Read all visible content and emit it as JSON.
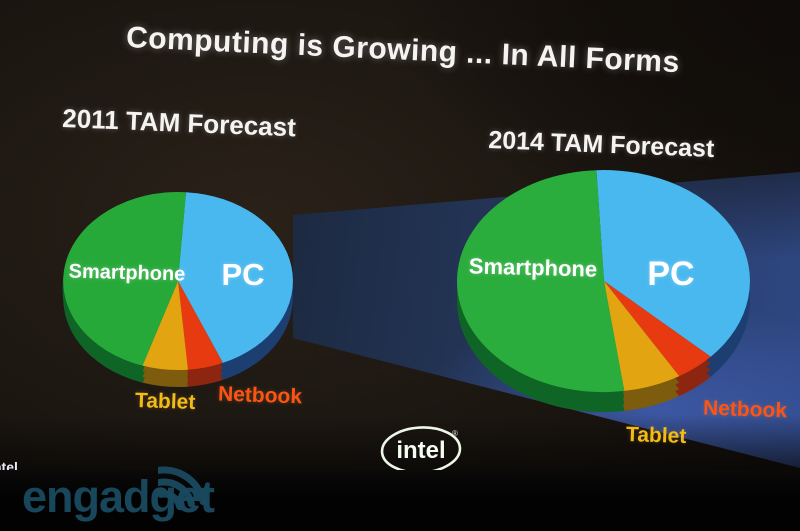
{
  "slide": {
    "title": "Computing is Growing ... In All Forms"
  },
  "chart_data": [
    {
      "type": "pie",
      "title": "2011 TAM Forecast",
      "style": "3d-ellipse",
      "slices": [
        {
          "label": "PC",
          "share_pct_est": 43,
          "start_deg": 4,
          "end_deg": 157,
          "color": "#48b8ef",
          "side_color": "#1d3e70",
          "label_color": "#ffffff"
        },
        {
          "label": "Netbook",
          "share_pct_est": 5,
          "start_deg": 157,
          "end_deg": 175,
          "color": "#e83a10",
          "side_color": "#8c2610",
          "label_color": "#ff5316"
        },
        {
          "label": "Tablet",
          "share_pct_est": 6,
          "start_deg": 175,
          "end_deg": 198,
          "color": "#e2a511",
          "side_color": "#7d5c0e",
          "label_color": "#f2bc16"
        },
        {
          "label": "Smartphone",
          "share_pct_est": 46,
          "start_deg": 198,
          "end_deg": 364,
          "color": "#27a93a",
          "side_color": "#0f6526",
          "label_color": "#ffffff"
        }
      ]
    },
    {
      "type": "pie",
      "title": "2014 TAM Forecast",
      "style": "3d-ellipse",
      "slices": [
        {
          "label": "PC",
          "share_pct_est": 38,
          "start_deg": -3,
          "end_deg": 133,
          "color": "#48b8ef",
          "side_color": "#1d3e70",
          "label_color": "#ffffff"
        },
        {
          "label": "Netbook",
          "share_pct_est": 4,
          "start_deg": 133,
          "end_deg": 149,
          "color": "#e83a10",
          "side_color": "#8c2610",
          "label_color": "#ff5316"
        },
        {
          "label": "Tablet",
          "share_pct_est": 7,
          "start_deg": 149,
          "end_deg": 172,
          "color": "#e2a511",
          "side_color": "#7d5c0e",
          "label_color": "#f2bc16"
        },
        {
          "label": "Smartphone",
          "share_pct_est": 51,
          "start_deg": 172,
          "end_deg": 357,
          "color": "#2aad3c",
          "side_color": "#0f6526",
          "label_color": "#ffffff"
        }
      ]
    }
  ],
  "footer": {
    "intel_logo_text": "intel",
    "registered_mark": "®",
    "partial_edge_text": "ntel"
  },
  "watermark": {
    "text": "engadget",
    "icon": "radio-waves-icon",
    "color": "#1a4a60"
  }
}
